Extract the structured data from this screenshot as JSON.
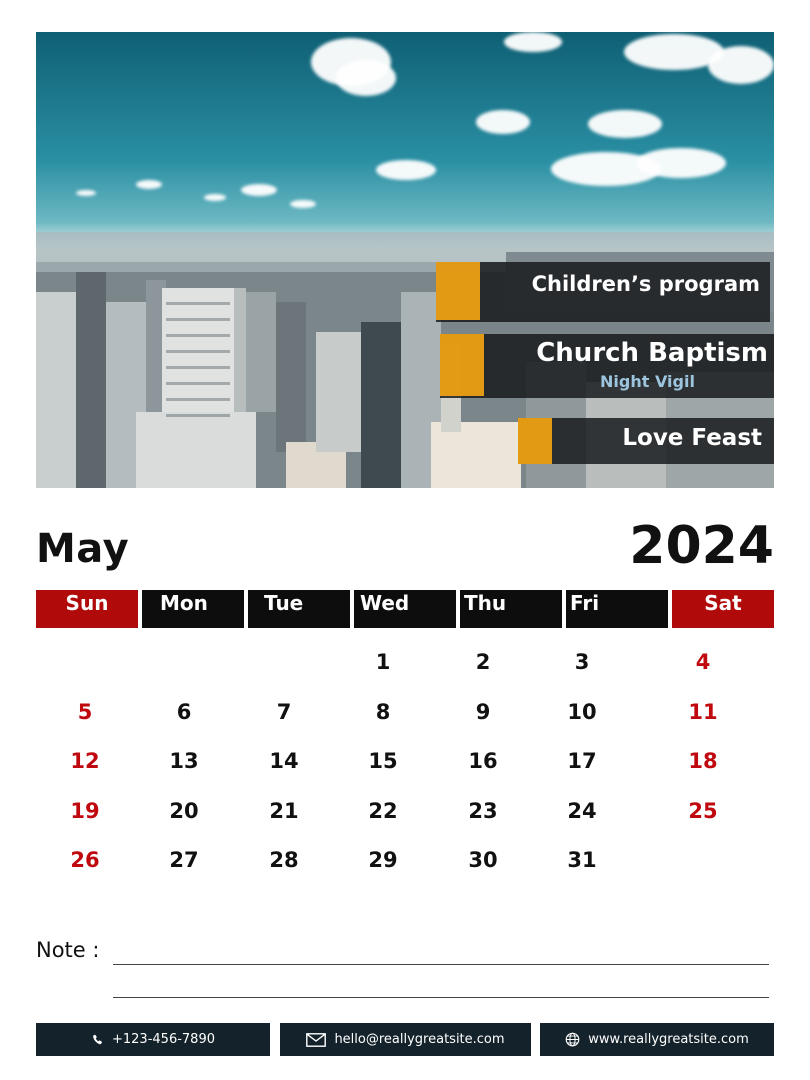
{
  "events": [
    {
      "title": "Children’s program"
    },
    {
      "title": "Church Baptism",
      "subtitle": "Night Vigil"
    },
    {
      "title": "Love Feast"
    }
  ],
  "calendar": {
    "month": "May",
    "year": "2024",
    "weekdays": [
      "Sun",
      "Mon",
      "Tue",
      "Wed",
      "Thu",
      "Fri",
      "Sat"
    ],
    "weeks": [
      [
        "",
        "",
        "",
        "1",
        "2",
        "3",
        "4"
      ],
      [
        "5",
        "6",
        "7",
        "8",
        "9",
        "10",
        "11"
      ],
      [
        "12",
        "13",
        "14",
        "15",
        "16",
        "17",
        "18"
      ],
      [
        "19",
        "20",
        "21",
        "22",
        "23",
        "24",
        "25"
      ],
      [
        "26",
        "27",
        "28",
        "29",
        "30",
        "31",
        ""
      ]
    ]
  },
  "notes": {
    "label": "Note :"
  },
  "contact": {
    "phone": "+123-456-7890",
    "email": "hello@reallygreatsite.com",
    "website": "www.reallygreatsite.com"
  },
  "colors": {
    "accent": "#f2a413",
    "weekend": "#c0090f",
    "weekend_header": "#b10a0a",
    "footer": "#14232b"
  },
  "icons": {
    "phone": "phone-icon",
    "email": "envelope-icon",
    "website": "globe-icon"
  }
}
